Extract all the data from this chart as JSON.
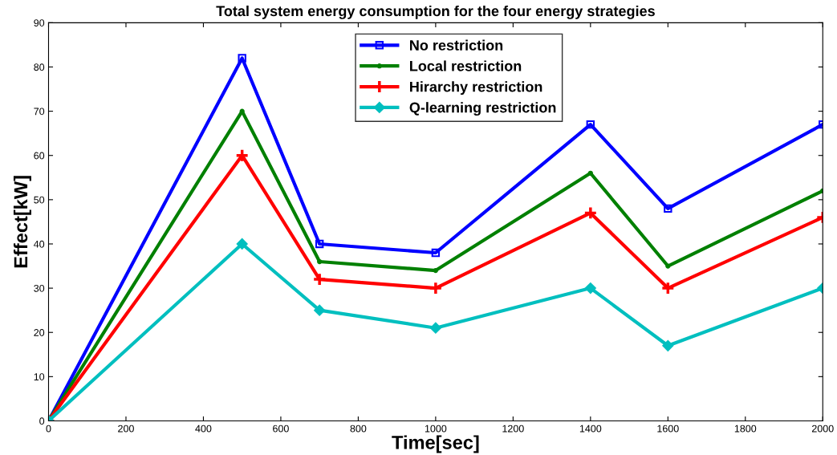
{
  "chart_data": {
    "type": "line",
    "title": "Total system energy consumption for the four energy strategies",
    "xlabel": "Time[sec]",
    "ylabel": "Effect[kW]",
    "x": [
      0,
      500,
      700,
      1000,
      1400,
      1600,
      2000
    ],
    "series": [
      {
        "name": "No restriction",
        "color": "#0000ff",
        "marker": "square",
        "values": [
          0,
          82,
          40,
          38,
          67,
          48,
          67
        ]
      },
      {
        "name": "Local restriction",
        "color": "#008000",
        "marker": "circle",
        "values": [
          0,
          70,
          36,
          34,
          56,
          35,
          52
        ]
      },
      {
        "name": "Hirarchy restriction",
        "color": "#ff0000",
        "marker": "cross",
        "values": [
          0,
          60,
          32,
          30,
          47,
          30,
          46
        ]
      },
      {
        "name": "Q-learning restriction",
        "color": "#00bfbf",
        "marker": "diamond",
        "values": [
          0,
          40,
          25,
          21,
          30,
          17,
          30
        ]
      }
    ],
    "xlim": [
      0,
      2000
    ],
    "xticks": [
      0,
      200,
      400,
      600,
      800,
      1000,
      1200,
      1400,
      1600,
      1800,
      2000
    ],
    "ylim": [
      0,
      90
    ],
    "yticks": [
      0,
      10,
      20,
      30,
      40,
      50,
      60,
      70,
      80,
      90
    ],
    "grid": false,
    "legend": "top",
    "line_style": "solid"
  }
}
